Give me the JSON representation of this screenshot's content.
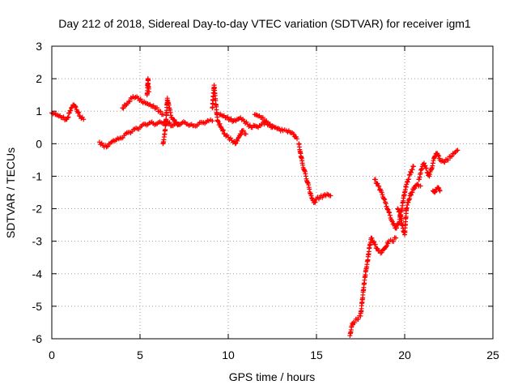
{
  "chart_data": {
    "type": "scatter",
    "title": "Day 212 of 2018, Sidereal Day-to-day VTEC variation (SDTVAR) for receiver igm1",
    "xlabel": "GPS time / hours",
    "ylabel": "SDTVAR / TECUs",
    "xlim": [
      0,
      25
    ],
    "ylim": [
      -6,
      3
    ],
    "xticks": [
      0,
      5,
      10,
      15,
      20,
      25
    ],
    "yticks": [
      -6,
      -5,
      -4,
      -3,
      -2,
      -1,
      0,
      1,
      2,
      3
    ],
    "xtick_labels": [
      "0",
      "5",
      "10",
      "15",
      "20",
      "25"
    ],
    "ytick_labels": [
      "-6",
      "-5",
      "-4",
      "-3",
      "-2",
      "-1",
      "0",
      "1",
      "2",
      "3"
    ],
    "grid": true,
    "marker": "+",
    "color": "#ff0000",
    "series": [
      {
        "name": "SDTVAR",
        "segments": [
          [
            [
              0.0,
              0.95
            ],
            [
              0.2,
              0.9
            ],
            [
              0.4,
              0.85
            ],
            [
              0.6,
              0.8
            ],
            [
              0.8,
              0.75
            ],
            [
              0.9,
              0.8
            ],
            [
              1.0,
              0.95
            ],
            [
              1.1,
              1.1
            ],
            [
              1.25,
              1.2
            ],
            [
              1.4,
              1.05
            ],
            [
              1.6,
              0.85
            ],
            [
              1.8,
              0.75
            ]
          ],
          [
            [
              2.7,
              0.05
            ],
            [
              2.9,
              -0.05
            ],
            [
              3.1,
              -0.1
            ],
            [
              3.3,
              0.0
            ],
            [
              3.5,
              0.1
            ],
            [
              3.8,
              0.15
            ],
            [
              4.1,
              0.25
            ],
            [
              4.4,
              0.35
            ],
            [
              4.7,
              0.45
            ],
            [
              5.0,
              0.5
            ],
            [
              5.3,
              0.6
            ],
            [
              5.6,
              0.65
            ],
            [
              5.9,
              0.6
            ],
            [
              6.2,
              0.65
            ],
            [
              6.5,
              0.7
            ],
            [
              6.8,
              0.55
            ],
            [
              7.1,
              0.6
            ],
            [
              7.4,
              0.65
            ],
            [
              7.7,
              0.6
            ],
            [
              8.0,
              0.55
            ],
            [
              8.3,
              0.6
            ],
            [
              8.6,
              0.65
            ],
            [
              8.9,
              0.7
            ],
            [
              9.1,
              0.7
            ]
          ],
          [
            [
              4.0,
              1.1
            ],
            [
              4.3,
              1.25
            ],
            [
              4.6,
              1.45
            ],
            [
              4.9,
              1.4
            ],
            [
              5.1,
              1.3
            ],
            [
              5.3,
              1.25
            ],
            [
              5.5,
              1.2
            ],
            [
              5.7,
              1.15
            ],
            [
              5.9,
              1.1
            ],
            [
              6.1,
              1.0
            ],
            [
              6.3,
              0.9
            ]
          ],
          [
            [
              5.4,
              1.5
            ],
            [
              5.45,
              2.0
            ],
            [
              5.5,
              1.6
            ]
          ],
          [
            [
              6.3,
              0.0
            ],
            [
              6.4,
              0.3
            ],
            [
              6.5,
              0.9
            ],
            [
              6.55,
              1.4
            ],
            [
              6.65,
              1.1
            ],
            [
              6.8,
              0.8
            ],
            [
              7.0,
              0.65
            ],
            [
              7.2,
              0.6
            ]
          ],
          [
            [
              9.1,
              1.1
            ],
            [
              9.2,
              1.8
            ],
            [
              9.3,
              1.2
            ],
            [
              9.4,
              0.7
            ],
            [
              9.6,
              0.5
            ],
            [
              9.8,
              0.3
            ],
            [
              10.0,
              0.2
            ],
            [
              10.2,
              0.1
            ],
            [
              10.4,
              0.0
            ],
            [
              10.6,
              0.2
            ],
            [
              10.8,
              0.4
            ],
            [
              11.0,
              0.3
            ]
          ],
          [
            [
              9.5,
              0.9
            ],
            [
              9.7,
              0.85
            ],
            [
              9.9,
              0.8
            ],
            [
              10.1,
              0.75
            ],
            [
              10.3,
              0.7
            ],
            [
              10.5,
              0.75
            ],
            [
              10.7,
              0.8
            ],
            [
              10.9,
              0.7
            ],
            [
              11.1,
              0.6
            ],
            [
              11.3,
              0.5
            ],
            [
              11.5,
              0.55
            ],
            [
              11.7,
              0.5
            ],
            [
              11.9,
              0.6
            ],
            [
              12.1,
              0.65
            ],
            [
              12.3,
              0.6
            ],
            [
              12.5,
              0.55
            ],
            [
              12.7,
              0.5
            ],
            [
              12.9,
              0.45
            ],
            [
              13.1,
              0.4
            ],
            [
              13.3,
              0.4
            ],
            [
              13.5,
              0.35
            ],
            [
              13.7,
              0.3
            ],
            [
              13.9,
              0.15
            ]
          ],
          [
            [
              11.5,
              0.9
            ],
            [
              11.7,
              0.85
            ],
            [
              11.9,
              0.8
            ],
            [
              12.1,
              0.7
            ],
            [
              12.3,
              0.6
            ],
            [
              12.5,
              0.5
            ]
          ],
          [
            [
              14.0,
              0.0
            ],
            [
              14.1,
              -0.3
            ],
            [
              14.2,
              -0.6
            ],
            [
              14.3,
              -0.8
            ],
            [
              14.4,
              -1.0
            ],
            [
              14.5,
              -1.2
            ],
            [
              14.6,
              -1.4
            ],
            [
              14.7,
              -1.6
            ],
            [
              14.8,
              -1.75
            ],
            [
              14.9,
              -1.8
            ],
            [
              15.0,
              -1.7
            ],
            [
              15.2,
              -1.65
            ],
            [
              15.4,
              -1.6
            ],
            [
              15.6,
              -1.55
            ],
            [
              15.8,
              -1.6
            ]
          ],
          [
            [
              16.9,
              -5.9
            ],
            [
              17.0,
              -5.6
            ],
            [
              17.1,
              -5.5
            ],
            [
              17.3,
              -5.4
            ],
            [
              17.5,
              -5.3
            ],
            [
              17.6,
              -4.8
            ],
            [
              17.7,
              -4.3
            ],
            [
              17.8,
              -3.9
            ],
            [
              17.9,
              -3.6
            ],
            [
              18.0,
              -3.2
            ],
            [
              18.1,
              -2.9
            ],
            [
              18.3,
              -3.1
            ],
            [
              18.5,
              -3.3
            ],
            [
              18.7,
              -3.35
            ],
            [
              18.9,
              -3.2
            ],
            [
              19.1,
              -3.0
            ],
            [
              19.3,
              -3.0
            ],
            [
              19.5,
              -2.9
            ]
          ],
          [
            [
              18.3,
              -1.1
            ],
            [
              18.5,
              -1.3
            ],
            [
              18.7,
              -1.5
            ],
            [
              18.9,
              -1.8
            ],
            [
              19.1,
              -2.1
            ],
            [
              19.3,
              -2.4
            ],
            [
              19.5,
              -2.6
            ],
            [
              19.7,
              -2.4
            ],
            [
              19.8,
              -2.1
            ],
            [
              19.9,
              -1.8
            ],
            [
              20.0,
              -1.5
            ],
            [
              20.1,
              -1.25
            ],
            [
              20.2,
              -1.1
            ],
            [
              20.3,
              -0.95
            ],
            [
              20.4,
              -0.8
            ],
            [
              20.5,
              -0.7
            ]
          ],
          [
            [
              19.6,
              -2.0
            ],
            [
              19.7,
              -2.1
            ],
            [
              19.8,
              -2.3
            ],
            [
              19.9,
              -2.6
            ],
            [
              20.0,
              -2.8
            ],
            [
              20.05,
              -2.4
            ],
            [
              20.1,
              -2.0
            ],
            [
              20.2,
              -1.8
            ],
            [
              20.3,
              -1.6
            ],
            [
              20.4,
              -1.5
            ],
            [
              20.5,
              -1.4
            ],
            [
              20.6,
              -1.3
            ],
            [
              20.7,
              -1.25
            ],
            [
              20.8,
              -1.3
            ],
            [
              20.9,
              -1.3
            ]
          ],
          [
            [
              20.8,
              -1.1
            ],
            [
              20.9,
              -0.9
            ],
            [
              21.0,
              -0.7
            ],
            [
              21.1,
              -0.6
            ],
            [
              21.2,
              -0.75
            ],
            [
              21.3,
              -0.9
            ],
            [
              21.4,
              -1.0
            ],
            [
              21.5,
              -0.8
            ],
            [
              21.6,
              -0.6
            ],
            [
              21.7,
              -0.4
            ],
            [
              21.8,
              -0.3
            ],
            [
              21.9,
              -0.35
            ],
            [
              22.0,
              -0.5
            ],
            [
              22.2,
              -0.55
            ],
            [
              22.4,
              -0.5
            ],
            [
              22.6,
              -0.4
            ],
            [
              22.8,
              -0.3
            ],
            [
              23.0,
              -0.2
            ]
          ],
          [
            [
              21.6,
              -1.45
            ],
            [
              21.7,
              -1.5
            ],
            [
              21.8,
              -1.4
            ],
            [
              21.9,
              -1.35
            ],
            [
              22.0,
              -1.45
            ]
          ]
        ]
      }
    ]
  }
}
